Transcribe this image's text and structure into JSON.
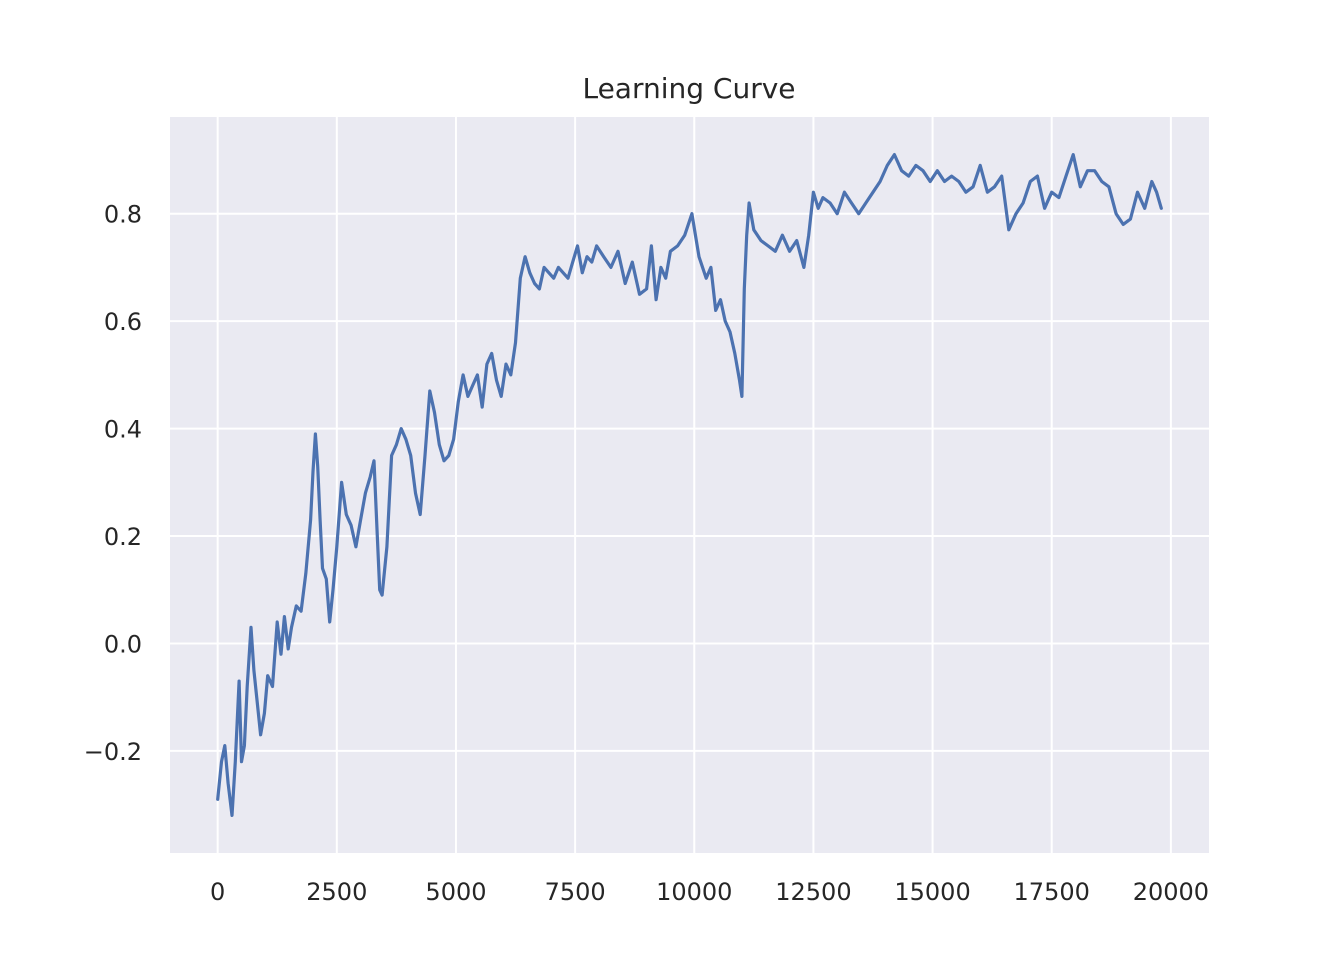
{
  "chart_data": {
    "type": "line",
    "title": "Learning Curve",
    "xlabel": "",
    "ylabel": "",
    "xlim": [
      -1000,
      20800
    ],
    "ylim": [
      -0.39,
      0.98
    ],
    "xticks": [
      0,
      2500,
      5000,
      7500,
      10000,
      12500,
      15000,
      17500,
      20000
    ],
    "xtick_labels": [
      "0",
      "2500",
      "5000",
      "7500",
      "10000",
      "12500",
      "15000",
      "17500",
      "20000"
    ],
    "yticks": [
      -0.2,
      0.0,
      0.2,
      0.4,
      0.6,
      0.8
    ],
    "ytick_labels": [
      "−0.2",
      "0.0",
      "0.2",
      "0.4",
      "0.6",
      "0.8"
    ],
    "grid": true,
    "background": "#eaeaf2",
    "grid_color": "#ffffff",
    "line_color": "#4c72b0",
    "series": [
      {
        "x": [
          0,
          80,
          150,
          220,
          300,
          370,
          450,
          500,
          560,
          620,
          700,
          760,
          820,
          900,
          980,
          1050,
          1150,
          1250,
          1330,
          1400,
          1480,
          1550,
          1650,
          1750,
          1850,
          1950,
          2000,
          2050,
          2100,
          2150,
          2200,
          2280,
          2350,
          2420,
          2500,
          2600,
          2700,
          2800,
          2900,
          3000,
          3100,
          3200,
          3280,
          3350,
          3400,
          3450,
          3550,
          3650,
          3750,
          3850,
          3950,
          4050,
          4150,
          4250,
          4350,
          4450,
          4550,
          4650,
          4750,
          4850,
          4950,
          5050,
          5150,
          5250,
          5350,
          5450,
          5550,
          5650,
          5750,
          5850,
          5950,
          6050,
          6150,
          6250,
          6350,
          6450,
          6550,
          6650,
          6750,
          6850,
          6950,
          7050,
          7150,
          7250,
          7350,
          7450,
          7550,
          7650,
          7750,
          7850,
          7950,
          8100,
          8250,
          8400,
          8550,
          8700,
          8850,
          9000,
          9100,
          9200,
          9300,
          9400,
          9500,
          9650,
          9800,
          9950,
          10100,
          10250,
          10350,
          10450,
          10550,
          10650,
          10750,
          10850,
          10950,
          11000,
          11050,
          11100,
          11150,
          11250,
          11400,
          11550,
          11700,
          11850,
          12000,
          12150,
          12300,
          12400,
          12500,
          12600,
          12700,
          12850,
          13000,
          13150,
          13300,
          13450,
          13600,
          13750,
          13900,
          14050,
          14200,
          14350,
          14500,
          14650,
          14800,
          14950,
          15100,
          15250,
          15400,
          15550,
          15700,
          15850,
          16000,
          16150,
          16300,
          16450,
          16600,
          16750,
          16900,
          17050,
          17200,
          17350,
          17500,
          17650,
          17800,
          17950,
          18100,
          18250,
          18400,
          18550,
          18700,
          18850,
          19000,
          19150,
          19300,
          19450,
          19600,
          19700,
          19800
        ],
        "y": [
          -0.29,
          -0.22,
          -0.19,
          -0.26,
          -0.32,
          -0.22,
          -0.07,
          -0.22,
          -0.19,
          -0.08,
          0.03,
          -0.05,
          -0.1,
          -0.17,
          -0.13,
          -0.06,
          -0.08,
          0.04,
          -0.02,
          0.05,
          -0.01,
          0.03,
          0.07,
          0.06,
          0.13,
          0.23,
          0.32,
          0.39,
          0.33,
          0.23,
          0.14,
          0.12,
          0.04,
          0.1,
          0.18,
          0.3,
          0.24,
          0.22,
          0.18,
          0.23,
          0.28,
          0.31,
          0.34,
          0.2,
          0.1,
          0.09,
          0.18,
          0.35,
          0.37,
          0.4,
          0.38,
          0.35,
          0.28,
          0.24,
          0.35,
          0.47,
          0.43,
          0.37,
          0.34,
          0.35,
          0.38,
          0.45,
          0.5,
          0.46,
          0.48,
          0.5,
          0.44,
          0.52,
          0.54,
          0.49,
          0.46,
          0.52,
          0.5,
          0.56,
          0.68,
          0.72,
          0.69,
          0.67,
          0.66,
          0.7,
          0.69,
          0.68,
          0.7,
          0.69,
          0.68,
          0.71,
          0.74,
          0.69,
          0.72,
          0.71,
          0.74,
          0.72,
          0.7,
          0.73,
          0.67,
          0.71,
          0.65,
          0.66,
          0.74,
          0.64,
          0.7,
          0.68,
          0.73,
          0.74,
          0.76,
          0.8,
          0.72,
          0.68,
          0.7,
          0.62,
          0.64,
          0.6,
          0.58,
          0.54,
          0.49,
          0.46,
          0.66,
          0.76,
          0.82,
          0.77,
          0.75,
          0.74,
          0.73,
          0.76,
          0.73,
          0.75,
          0.7,
          0.76,
          0.84,
          0.81,
          0.83,
          0.82,
          0.8,
          0.84,
          0.82,
          0.8,
          0.82,
          0.84,
          0.86,
          0.89,
          0.91,
          0.88,
          0.87,
          0.89,
          0.88,
          0.86,
          0.88,
          0.86,
          0.87,
          0.86,
          0.84,
          0.85,
          0.89,
          0.84,
          0.85,
          0.87,
          0.77,
          0.8,
          0.82,
          0.86,
          0.87,
          0.81,
          0.84,
          0.83,
          0.87,
          0.91,
          0.85,
          0.88,
          0.88,
          0.86,
          0.85,
          0.8,
          0.78,
          0.79,
          0.84,
          0.81,
          0.86,
          0.84,
          0.81
        ]
      }
    ]
  }
}
